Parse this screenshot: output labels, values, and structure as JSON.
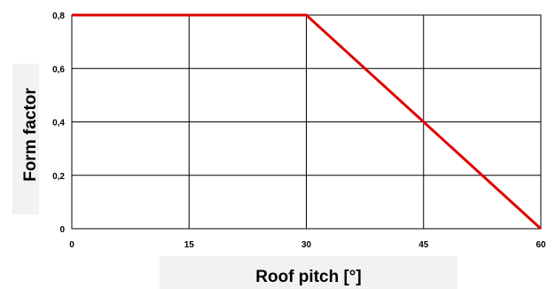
{
  "chart_data": {
    "type": "line",
    "xlabel": "Roof pitch [°]",
    "ylabel": "Form factor",
    "xlim": [
      0,
      60
    ],
    "ylim": [
      0,
      0.8
    ],
    "x_ticks": [
      "0",
      "15",
      "30",
      "45",
      "60"
    ],
    "y_ticks": [
      "0",
      "0,2",
      "0,4",
      "0,6",
      "0,8"
    ],
    "grid": true,
    "series": [
      {
        "x": [
          0,
          30,
          60
        ],
        "y": [
          0.8,
          0.8,
          0
        ],
        "color": "#e00000"
      }
    ]
  }
}
